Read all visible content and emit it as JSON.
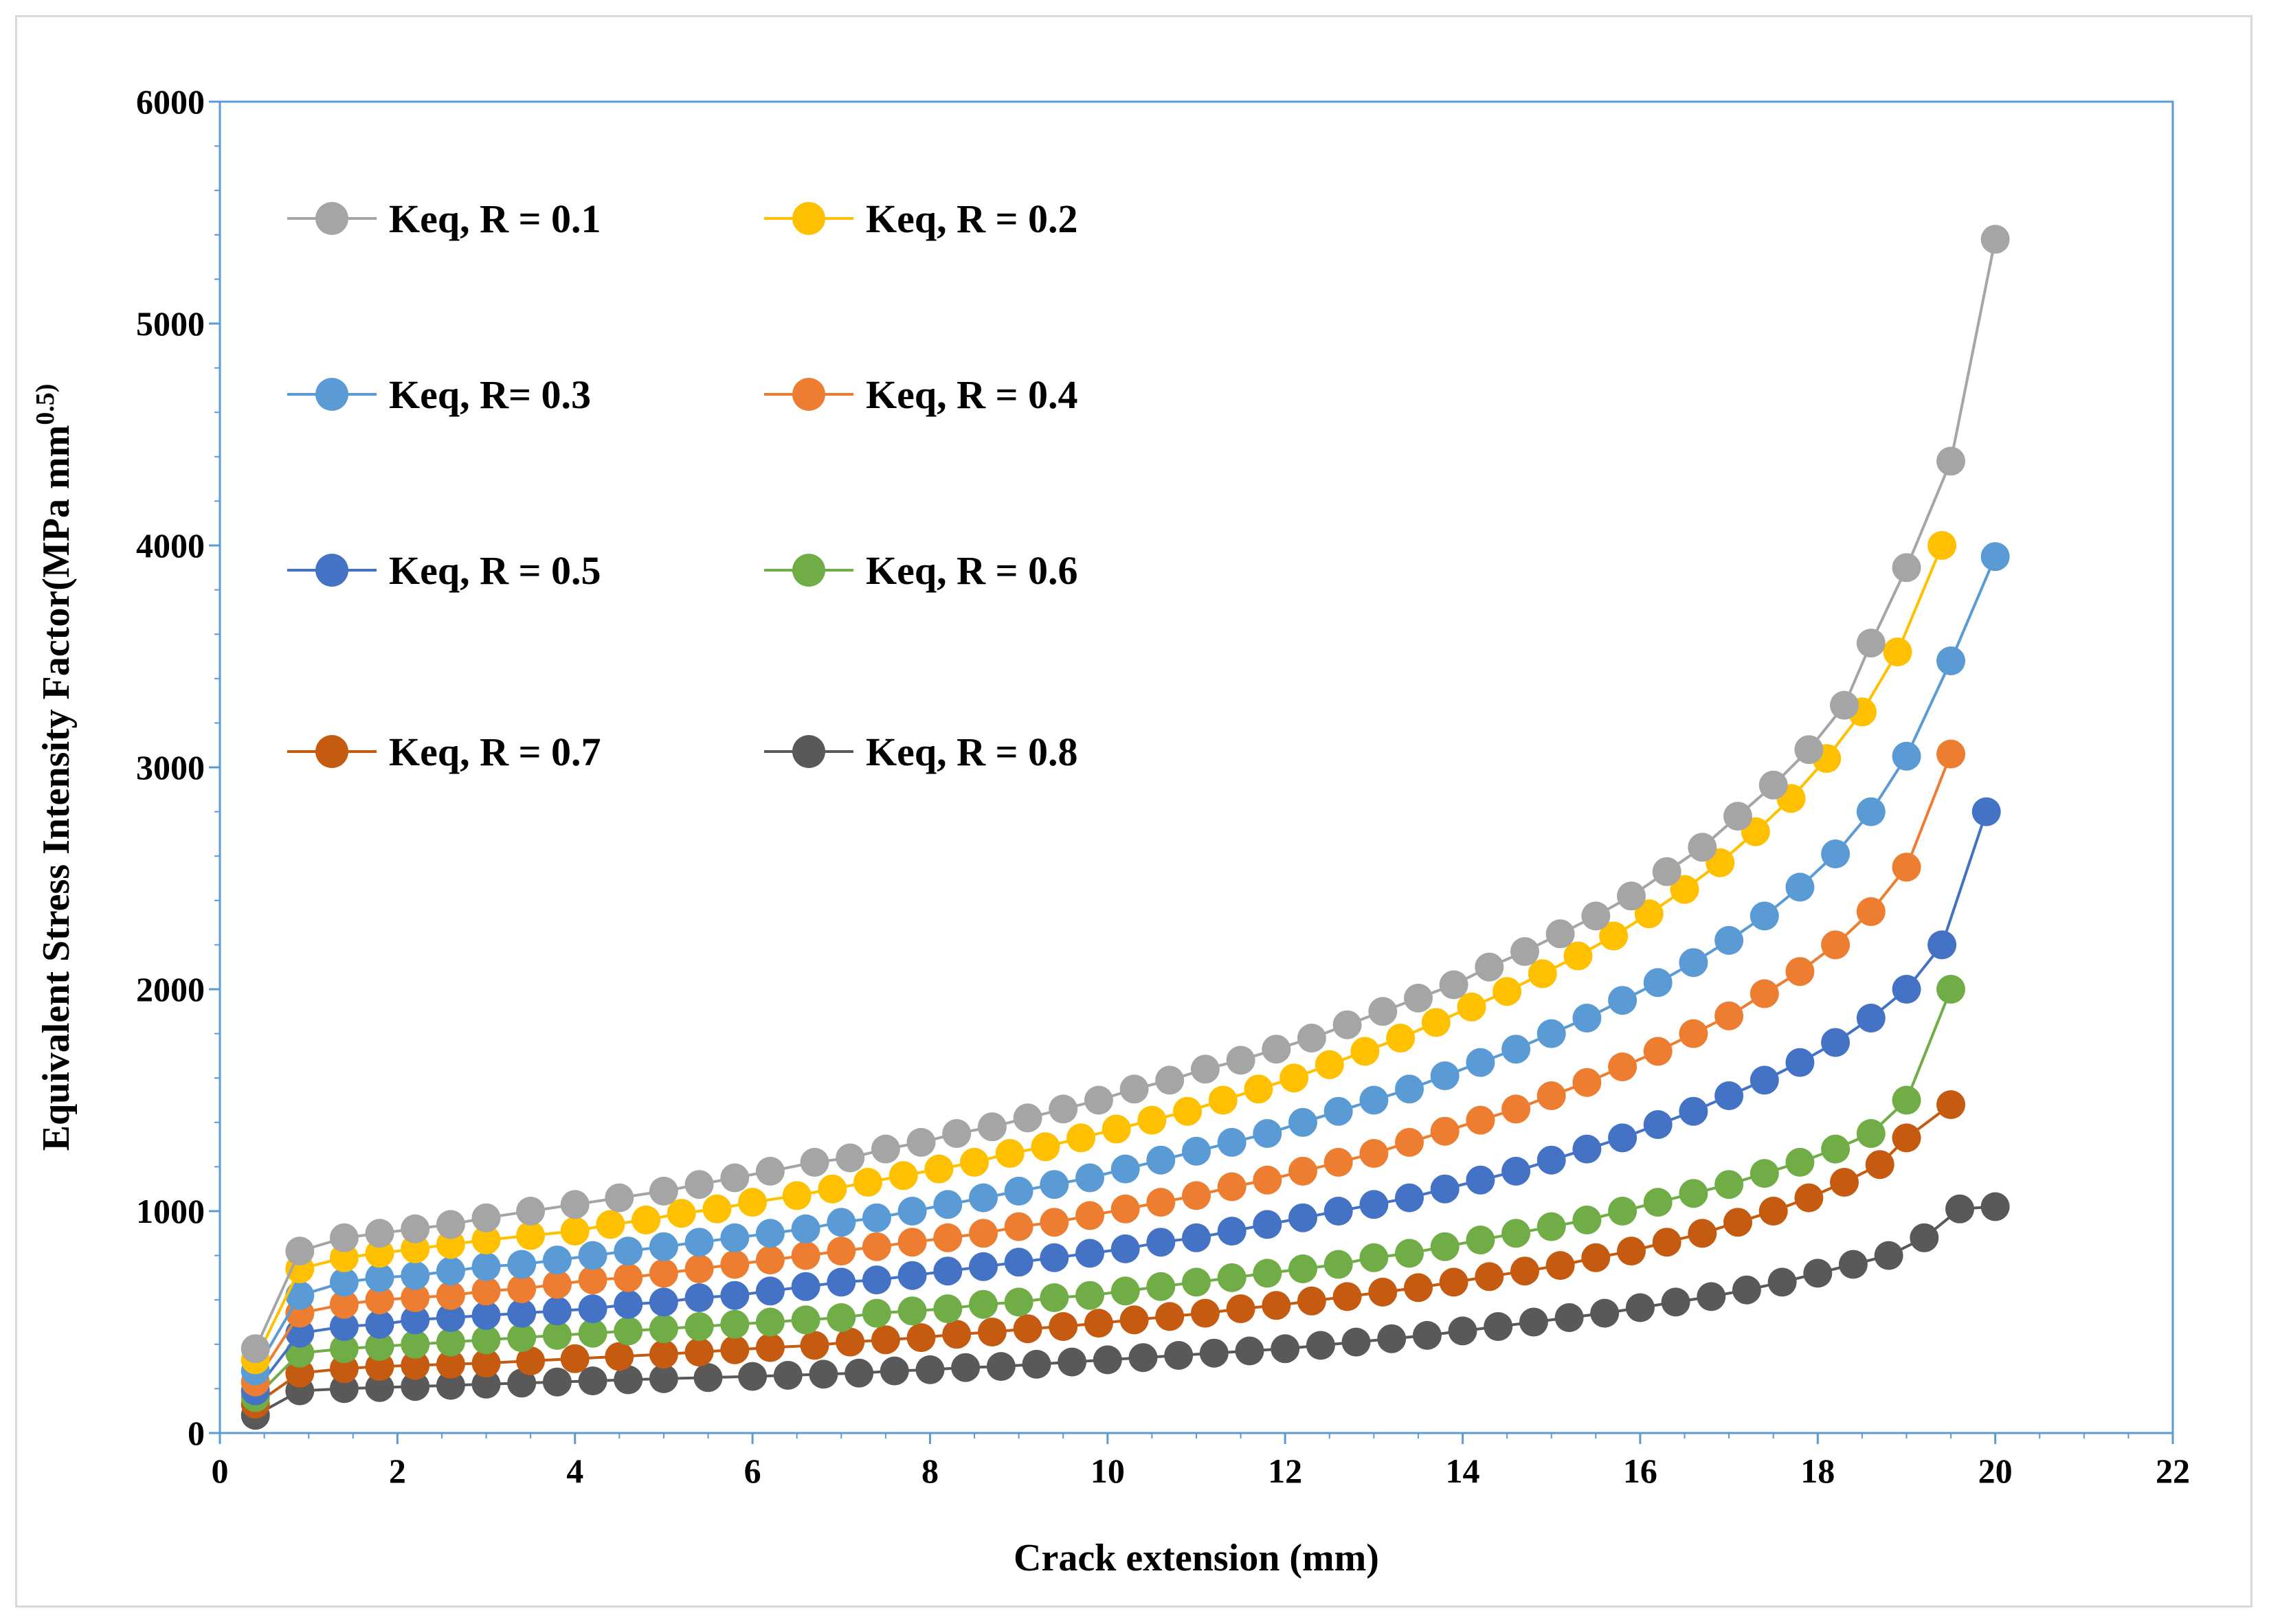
{
  "chart_data": {
    "type": "line",
    "title": "",
    "xlabel": "Crack extension (mm)",
    "ylabel_main": "Equivalent Stress Intensity Factor(MPa mm",
    "ylabel_sup": "0.5)",
    "xlim": [
      0,
      22
    ],
    "ylim": [
      0,
      6000
    ],
    "x_ticks": [
      0,
      2,
      4,
      6,
      8,
      10,
      12,
      14,
      16,
      18,
      20,
      22
    ],
    "y_ticks": [
      0,
      1000,
      2000,
      3000,
      4000,
      5000,
      6000
    ],
    "x_tick_labels": [
      "0",
      "2",
      "4",
      "6",
      "8",
      "10",
      "12",
      "14",
      "16",
      "18",
      "20",
      "22"
    ],
    "y_tick_labels": [
      "0",
      "1000",
      "2000",
      "3000",
      "4000",
      "5000",
      "6000"
    ],
    "grid": false,
    "legend_position": "top-left",
    "series": [
      {
        "name": "Keq, R = 0.1",
        "color": "#a5a5a5",
        "x": [
          0.4,
          0.9,
          1.4,
          1.8,
          2.2,
          2.6,
          3.0,
          3.5,
          4.0,
          4.5,
          5.0,
          5.4,
          5.8,
          6.2,
          6.7,
          7.1,
          7.5,
          7.9,
          8.3,
          8.7,
          9.1,
          9.5,
          9.9,
          10.3,
          10.7,
          11.1,
          11.5,
          11.9,
          12.3,
          12.7,
          13.1,
          13.5,
          13.9,
          14.3,
          14.7,
          15.1,
          15.5,
          15.9,
          16.3,
          16.7,
          17.1,
          17.5,
          17.9,
          18.3,
          18.6,
          19.0,
          19.5,
          20.0
        ],
        "y": [
          380,
          820,
          880,
          900,
          920,
          940,
          970,
          1000,
          1030,
          1060,
          1090,
          1120,
          1150,
          1180,
          1220,
          1240,
          1280,
          1310,
          1350,
          1380,
          1420,
          1460,
          1500,
          1550,
          1590,
          1640,
          1680,
          1730,
          1780,
          1840,
          1900,
          1960,
          2020,
          2100,
          2170,
          2250,
          2330,
          2420,
          2530,
          2640,
          2780,
          2920,
          3080,
          3280,
          3560,
          3900,
          4380,
          5380
        ]
      },
      {
        "name": "Keq, R = 0.2",
        "color": "#ffc000",
        "x": [
          0.4,
          0.9,
          1.4,
          1.8,
          2.2,
          2.6,
          3.0,
          3.5,
          4.0,
          4.4,
          4.8,
          5.2,
          5.6,
          6.0,
          6.5,
          6.9,
          7.3,
          7.7,
          8.1,
          8.5,
          8.9,
          9.3,
          9.7,
          10.1,
          10.5,
          10.9,
          11.3,
          11.7,
          12.1,
          12.5,
          12.9,
          13.3,
          13.7,
          14.1,
          14.5,
          14.9,
          15.3,
          15.7,
          16.1,
          16.5,
          16.9,
          17.3,
          17.7,
          18.1,
          18.5,
          18.9,
          19.4
        ],
        "y": [
          330,
          740,
          790,
          810,
          830,
          850,
          870,
          890,
          910,
          940,
          960,
          990,
          1010,
          1040,
          1070,
          1100,
          1130,
          1160,
          1190,
          1220,
          1260,
          1290,
          1330,
          1370,
          1410,
          1450,
          1500,
          1550,
          1600,
          1660,
          1720,
          1780,
          1850,
          1920,
          1990,
          2070,
          2150,
          2240,
          2340,
          2450,
          2570,
          2710,
          2860,
          3040,
          3250,
          3520,
          4000
        ]
      },
      {
        "name": "Keq, R= 0.3",
        "color": "#5b9bd5",
        "x": [
          0.4,
          0.9,
          1.4,
          1.8,
          2.2,
          2.6,
          3.0,
          3.4,
          3.8,
          4.2,
          4.6,
          5.0,
          5.4,
          5.8,
          6.2,
          6.6,
          7.0,
          7.4,
          7.8,
          8.2,
          8.6,
          9.0,
          9.4,
          9.8,
          10.2,
          10.6,
          11.0,
          11.4,
          11.8,
          12.2,
          12.6,
          13.0,
          13.4,
          13.8,
          14.2,
          14.6,
          15.0,
          15.4,
          15.8,
          16.2,
          16.6,
          17.0,
          17.4,
          17.8,
          18.2,
          18.6,
          19.0,
          19.5,
          20.0
        ],
        "y": [
          280,
          620,
          680,
          700,
          710,
          730,
          750,
          760,
          780,
          800,
          820,
          840,
          860,
          880,
          900,
          920,
          950,
          970,
          1000,
          1030,
          1060,
          1090,
          1120,
          1150,
          1190,
          1230,
          1270,
          1310,
          1350,
          1400,
          1450,
          1500,
          1550,
          1610,
          1670,
          1730,
          1800,
          1870,
          1950,
          2030,
          2120,
          2220,
          2330,
          2460,
          2610,
          2800,
          3050,
          3480,
          3950
        ]
      },
      {
        "name": "Keq, R = 0.4",
        "color": "#ed7d31",
        "x": [
          0.4,
          0.9,
          1.4,
          1.8,
          2.2,
          2.6,
          3.0,
          3.4,
          3.8,
          4.2,
          4.6,
          5.0,
          5.4,
          5.8,
          6.2,
          6.6,
          7.0,
          7.4,
          7.8,
          8.2,
          8.6,
          9.0,
          9.4,
          9.8,
          10.2,
          10.6,
          11.0,
          11.4,
          11.8,
          12.2,
          12.6,
          13.0,
          13.4,
          13.8,
          14.2,
          14.6,
          15.0,
          15.4,
          15.8,
          16.2,
          16.6,
          17.0,
          17.4,
          17.8,
          18.2,
          18.6,
          19.0,
          19.5
        ],
        "y": [
          230,
          540,
          580,
          600,
          610,
          620,
          640,
          650,
          670,
          690,
          700,
          720,
          740,
          760,
          780,
          800,
          820,
          840,
          860,
          880,
          900,
          930,
          950,
          980,
          1010,
          1040,
          1070,
          1110,
          1140,
          1180,
          1220,
          1260,
          1310,
          1360,
          1410,
          1460,
          1520,
          1580,
          1650,
          1720,
          1800,
          1880,
          1980,
          2080,
          2200,
          2350,
          2550,
          3060
        ]
      },
      {
        "name": "Keq, R = 0.5",
        "color": "#4472c4",
        "x": [
          0.4,
          0.9,
          1.4,
          1.8,
          2.2,
          2.6,
          3.0,
          3.4,
          3.8,
          4.2,
          4.6,
          5.0,
          5.4,
          5.8,
          6.2,
          6.6,
          7.0,
          7.4,
          7.8,
          8.2,
          8.6,
          9.0,
          9.4,
          9.8,
          10.2,
          10.6,
          11.0,
          11.4,
          11.8,
          12.2,
          12.6,
          13.0,
          13.4,
          13.8,
          14.2,
          14.6,
          15.0,
          15.4,
          15.8,
          16.2,
          16.6,
          17.0,
          17.4,
          17.8,
          18.2,
          18.6,
          19.0,
          19.4,
          19.9
        ],
        "y": [
          190,
          450,
          480,
          490,
          510,
          520,
          530,
          540,
          550,
          560,
          580,
          590,
          610,
          620,
          640,
          660,
          680,
          690,
          710,
          730,
          750,
          770,
          790,
          810,
          830,
          860,
          880,
          910,
          940,
          970,
          1000,
          1030,
          1060,
          1100,
          1140,
          1180,
          1230,
          1280,
          1330,
          1390,
          1450,
          1520,
          1590,
          1670,
          1760,
          1870,
          2000,
          2200,
          2800
        ]
      },
      {
        "name": "Keq, R = 0.6",
        "color": "#70ad47",
        "x": [
          0.4,
          0.9,
          1.4,
          1.8,
          2.2,
          2.6,
          3.0,
          3.4,
          3.8,
          4.2,
          4.6,
          5.0,
          5.4,
          5.8,
          6.2,
          6.6,
          7.0,
          7.4,
          7.8,
          8.2,
          8.6,
          9.0,
          9.4,
          9.8,
          10.2,
          10.6,
          11.0,
          11.4,
          11.8,
          12.2,
          12.6,
          13.0,
          13.4,
          13.8,
          14.2,
          14.6,
          15.0,
          15.4,
          15.8,
          16.2,
          16.6,
          17.0,
          17.4,
          17.8,
          18.2,
          18.6,
          19.0,
          19.5
        ],
        "y": [
          160,
          360,
          380,
          390,
          400,
          410,
          420,
          430,
          440,
          450,
          460,
          470,
          480,
          490,
          500,
          510,
          520,
          540,
          550,
          560,
          580,
          590,
          610,
          620,
          640,
          660,
          680,
          700,
          720,
          740,
          760,
          790,
          810,
          840,
          870,
          900,
          930,
          960,
          1000,
          1040,
          1080,
          1120,
          1170,
          1220,
          1280,
          1350,
          1500,
          2000
        ]
      },
      {
        "name": "Keq, R = 0.7",
        "color": "#c55a11",
        "x": [
          0.4,
          0.9,
          1.4,
          1.8,
          2.2,
          2.6,
          3.0,
          3.5,
          4.0,
          4.5,
          5.0,
          5.4,
          5.8,
          6.2,
          6.7,
          7.1,
          7.5,
          7.9,
          8.3,
          8.7,
          9.1,
          9.5,
          9.9,
          10.3,
          10.7,
          11.1,
          11.5,
          11.9,
          12.3,
          12.7,
          13.1,
          13.5,
          13.9,
          14.3,
          14.7,
          15.1,
          15.5,
          15.9,
          16.3,
          16.7,
          17.1,
          17.5,
          17.9,
          18.3,
          18.7,
          19.0,
          19.5
        ],
        "y": [
          130,
          270,
          290,
          300,
          305,
          310,
          315,
          325,
          335,
          345,
          355,
          365,
          375,
          385,
          395,
          410,
          420,
          430,
          445,
          455,
          470,
          480,
          495,
          510,
          525,
          540,
          560,
          575,
          595,
          615,
          635,
          655,
          680,
          705,
          730,
          755,
          790,
          820,
          860,
          900,
          950,
          1000,
          1060,
          1130,
          1210,
          1330,
          1480
        ]
      },
      {
        "name": "Keq, R = 0.8",
        "color": "#595959",
        "x": [
          0.4,
          0.9,
          1.4,
          1.8,
          2.2,
          2.6,
          3.0,
          3.4,
          3.8,
          4.2,
          4.6,
          5.0,
          5.5,
          6.0,
          6.4,
          6.8,
          7.2,
          7.6,
          8.0,
          8.4,
          8.8,
          9.2,
          9.6,
          10.0,
          10.4,
          10.8,
          11.2,
          11.6,
          12.0,
          12.4,
          12.8,
          13.2,
          13.6,
          14.0,
          14.4,
          14.8,
          15.2,
          15.6,
          16.0,
          16.4,
          16.8,
          17.2,
          17.6,
          18.0,
          18.4,
          18.8,
          19.2,
          19.6,
          20.0
        ],
        "y": [
          80,
          190,
          200,
          205,
          210,
          215,
          220,
          225,
          230,
          235,
          240,
          245,
          250,
          255,
          260,
          265,
          270,
          280,
          285,
          295,
          300,
          310,
          320,
          330,
          340,
          350,
          360,
          370,
          380,
          395,
          410,
          425,
          440,
          460,
          480,
          500,
          520,
          540,
          565,
          590,
          615,
          645,
          680,
          720,
          760,
          800,
          880,
          1010,
          1020
        ]
      }
    ]
  }
}
